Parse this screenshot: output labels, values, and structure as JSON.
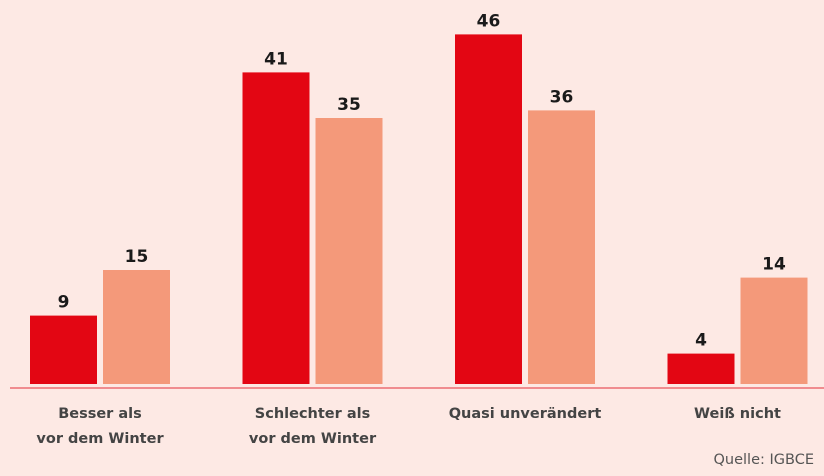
{
  "chart_data": {
    "type": "bar",
    "categories": [
      "Besser als\nvor dem Winter",
      "Schlechter als\nvor dem Winter",
      "Quasi unverändert",
      "Weiß nicht"
    ],
    "series": [
      {
        "color": "#e30613",
        "values": [
          9,
          41,
          46,
          4
        ]
      },
      {
        "color": "#f4997a",
        "values": [
          15,
          35,
          36,
          14
        ]
      }
    ],
    "source": "Quelle: IGBCE"
  }
}
